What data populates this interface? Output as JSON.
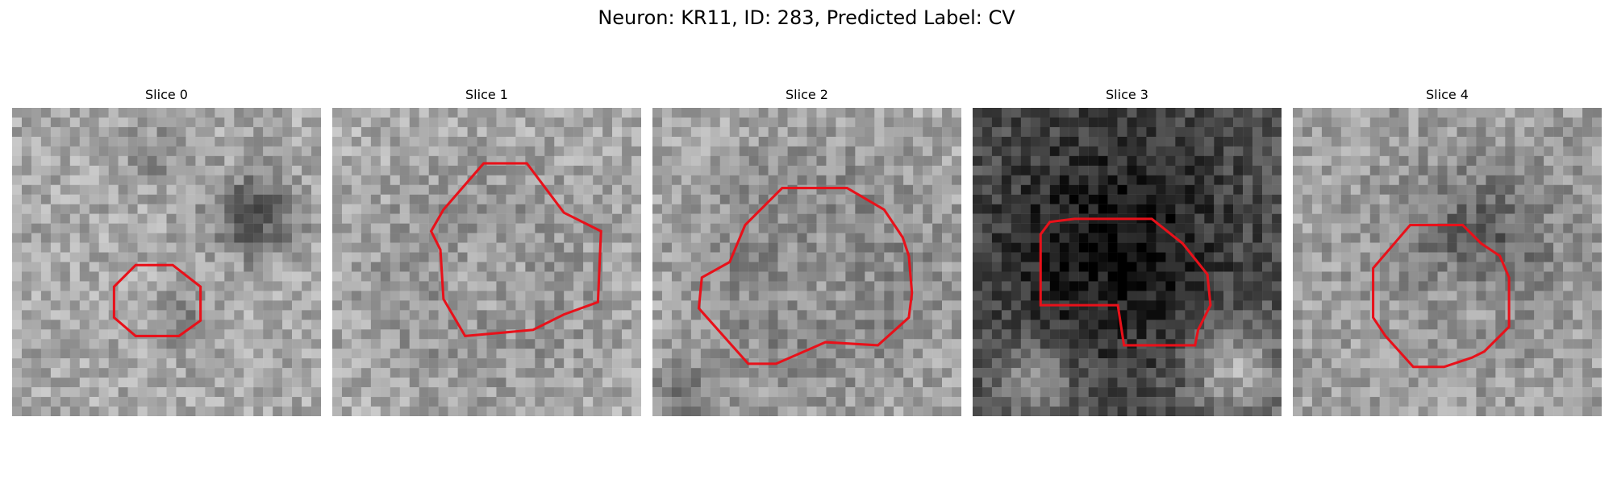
{
  "figure": {
    "title": "Neuron: KR11, ID: 283, Predicted Label: CV"
  },
  "colors": {
    "contour": "#e8111a"
  },
  "panels": [
    {
      "title": "Slice 0",
      "seed": 11,
      "mean": 168,
      "dark": [
        [
          0.78,
          0.35,
          0.15,
          -95
        ],
        [
          0.55,
          0.7,
          0.1,
          -40
        ],
        [
          0.45,
          0.15,
          0.12,
          -30
        ]
      ],
      "contour": [
        [
          0.4,
          0.51
        ],
        [
          0.52,
          0.51
        ],
        [
          0.61,
          0.58
        ],
        [
          0.61,
          0.69
        ],
        [
          0.54,
          0.74
        ],
        [
          0.4,
          0.74
        ],
        [
          0.33,
          0.68
        ],
        [
          0.33,
          0.58
        ]
      ]
    },
    {
      "title": "Slice 1",
      "seed": 23,
      "mean": 172,
      "dark": [
        [
          0.5,
          0.55,
          0.38,
          -70
        ],
        [
          0.5,
          0.55,
          0.26,
          60
        ]
      ],
      "contour": [
        [
          0.49,
          0.18
        ],
        [
          0.63,
          0.18
        ],
        [
          0.75,
          0.34
        ],
        [
          0.87,
          0.4
        ],
        [
          0.86,
          0.63
        ],
        [
          0.75,
          0.67
        ],
        [
          0.65,
          0.72
        ],
        [
          0.43,
          0.74
        ],
        [
          0.36,
          0.62
        ],
        [
          0.35,
          0.46
        ],
        [
          0.32,
          0.4
        ],
        [
          0.36,
          0.33
        ]
      ]
    },
    {
      "title": "Slice 2",
      "seed": 37,
      "mean": 170,
      "dark": [
        [
          0.55,
          0.53,
          0.4,
          -95
        ],
        [
          0.55,
          0.53,
          0.27,
          75
        ],
        [
          0.1,
          0.95,
          0.15,
          -50
        ]
      ],
      "contour": [
        [
          0.42,
          0.26
        ],
        [
          0.63,
          0.26
        ],
        [
          0.75,
          0.33
        ],
        [
          0.81,
          0.42
        ],
        [
          0.83,
          0.48
        ],
        [
          0.84,
          0.6
        ],
        [
          0.83,
          0.68
        ],
        [
          0.73,
          0.77
        ],
        [
          0.56,
          0.76
        ],
        [
          0.4,
          0.83
        ],
        [
          0.31,
          0.83
        ],
        [
          0.15,
          0.65
        ],
        [
          0.16,
          0.55
        ],
        [
          0.25,
          0.5
        ],
        [
          0.3,
          0.38
        ]
      ]
    },
    {
      "title": "Slice 3",
      "seed": 53,
      "mean": 85,
      "dark": [
        [
          0.45,
          0.45,
          0.45,
          -70
        ],
        [
          0.85,
          0.85,
          0.18,
          90
        ],
        [
          0.2,
          0.88,
          0.15,
          70
        ]
      ],
      "contour": [
        [
          0.33,
          0.36
        ],
        [
          0.58,
          0.36
        ],
        [
          0.68,
          0.44
        ],
        [
          0.76,
          0.54
        ],
        [
          0.77,
          0.64
        ],
        [
          0.73,
          0.72
        ],
        [
          0.72,
          0.77
        ],
        [
          0.68,
          0.77
        ],
        [
          0.49,
          0.77
        ],
        [
          0.47,
          0.64
        ],
        [
          0.4,
          0.64
        ],
        [
          0.22,
          0.64
        ],
        [
          0.22,
          0.41
        ],
        [
          0.25,
          0.37
        ]
      ]
    },
    {
      "title": "Slice 4",
      "seed": 71,
      "mean": 160,
      "dark": [
        [
          0.6,
          0.45,
          0.3,
          -70
        ],
        [
          0.55,
          0.6,
          0.15,
          40
        ]
      ],
      "contour": [
        [
          0.38,
          0.38
        ],
        [
          0.55,
          0.38
        ],
        [
          0.61,
          0.44
        ],
        [
          0.67,
          0.48
        ],
        [
          0.7,
          0.55
        ],
        [
          0.7,
          0.71
        ],
        [
          0.62,
          0.79
        ],
        [
          0.58,
          0.81
        ],
        [
          0.49,
          0.84
        ],
        [
          0.39,
          0.84
        ],
        [
          0.3,
          0.74
        ],
        [
          0.26,
          0.68
        ],
        [
          0.26,
          0.52
        ]
      ]
    }
  ]
}
